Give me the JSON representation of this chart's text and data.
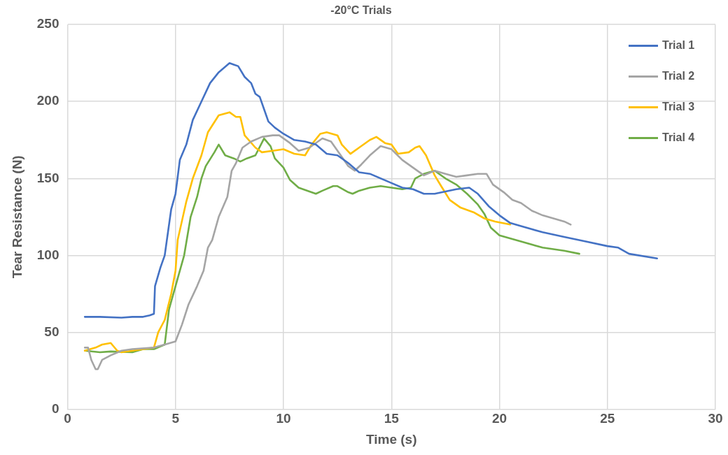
{
  "chart_data": {
    "type": "line",
    "title": "-20°C Trials",
    "xlabel": "Time (s)",
    "ylabel": "Tear Resistance (N)",
    "xlim": [
      0,
      30
    ],
    "xticks": [
      0,
      5,
      10,
      15,
      20,
      25,
      30
    ],
    "ylim": [
      0,
      250
    ],
    "yticks": [
      0,
      50,
      100,
      150,
      200,
      250
    ],
    "grid": true,
    "legend": "top right",
    "marker": "none",
    "line_style": "solid",
    "series": [
      {
        "name": "Trial 1",
        "color": "#4472c4",
        "x": [
          0.8,
          1.5,
          2.5,
          3.0,
          3.5,
          3.8,
          4.0,
          4.05,
          4.3,
          4.5,
          4.8,
          5.0,
          5.2,
          5.5,
          5.8,
          6.2,
          6.6,
          7.0,
          7.5,
          7.7,
          7.9,
          8.2,
          8.5,
          8.7,
          8.9,
          9.1,
          9.3,
          9.6,
          10.0,
          10.5,
          11.0,
          11.5,
          12.0,
          12.5,
          13.0,
          13.5,
          14.0,
          15.0,
          15.5,
          16.0,
          16.5,
          17.0,
          18.0,
          18.6,
          19.0,
          19.5,
          20.0,
          20.5,
          21.0,
          22.0,
          23.0,
          24.0,
          25.0,
          25.5,
          26.0,
          27.3
        ],
        "values": [
          60,
          60,
          59.5,
          60,
          60,
          61,
          62,
          80,
          92,
          100,
          130,
          140,
          162,
          172,
          188,
          200,
          212,
          219,
          225,
          224,
          223,
          216,
          212,
          205,
          203,
          195,
          187,
          183,
          179,
          175,
          174,
          172,
          166,
          165,
          160,
          154,
          153,
          147,
          144,
          143,
          140,
          140,
          143,
          144,
          140,
          132,
          126,
          121,
          119,
          115,
          112,
          109,
          106,
          105,
          101,
          98
        ]
      },
      {
        "name": "Trial 2",
        "color": "#a5a5a5",
        "x": [
          0.8,
          0.95,
          1.1,
          1.3,
          1.4,
          1.6,
          2.0,
          2.5,
          3.0,
          4.0,
          4.5,
          5.0,
          5.3,
          5.6,
          6.0,
          6.3,
          6.5,
          6.7,
          7.0,
          7.4,
          7.6,
          7.8,
          8.1,
          8.5,
          9.0,
          9.5,
          9.8,
          10.3,
          10.7,
          11.2,
          11.8,
          12.2,
          12.6,
          13.0,
          13.3,
          13.6,
          14.0,
          14.5,
          15.0,
          15.5,
          16.0,
          16.5,
          17.0,
          17.5,
          18.0,
          18.5,
          19.0,
          19.4,
          19.7,
          20.2,
          20.6,
          21.0,
          21.5,
          22.0,
          22.5,
          23.0,
          23.3
        ],
        "values": [
          40,
          40,
          32,
          26,
          26,
          32,
          35,
          38,
          39,
          40,
          42,
          44,
          55,
          68,
          80,
          90,
          105,
          110,
          125,
          138,
          155,
          160,
          170,
          174,
          177,
          178,
          178,
          173,
          168,
          170,
          176,
          174,
          166,
          158,
          155,
          159,
          165,
          171,
          169,
          162,
          157,
          152,
          155,
          153,
          151,
          152,
          153,
          153,
          146,
          141,
          136,
          134,
          129,
          126,
          124,
          122,
          120
        ]
      },
      {
        "name": "Trial 3",
        "color": "#ffc000",
        "x": [
          0.8,
          1.3,
          1.6,
          2.0,
          2.3,
          2.5,
          3.0,
          3.5,
          4.0,
          4.2,
          4.5,
          4.8,
          5.0,
          5.1,
          5.5,
          5.8,
          6.2,
          6.5,
          7.0,
          7.5,
          7.8,
          8.0,
          8.2,
          8.7,
          9.0,
          9.5,
          10.0,
          10.5,
          11.0,
          11.3,
          11.7,
          12.0,
          12.5,
          12.7,
          13.1,
          13.5,
          14.0,
          14.3,
          14.7,
          15.0,
          15.3,
          15.8,
          16.1,
          16.3,
          16.6,
          17.0,
          17.3,
          17.7,
          18.2,
          18.8,
          19.3,
          19.8,
          20.5
        ],
        "values": [
          38,
          40,
          42,
          43,
          38,
          37,
          38,
          39,
          40,
          50,
          58,
          75,
          90,
          110,
          135,
          150,
          165,
          180,
          191,
          193,
          190,
          190,
          178,
          170,
          167,
          168,
          169,
          166,
          165,
          172,
          179,
          180,
          178,
          172,
          166,
          170,
          175,
          177,
          173,
          172,
          166,
          167,
          170,
          171,
          165,
          152,
          145,
          136,
          131,
          128,
          124,
          122,
          120
        ]
      },
      {
        "name": "Trial 4",
        "color": "#70ad47",
        "x": [
          0.8,
          1.5,
          2.0,
          3.0,
          3.5,
          4.0,
          4.5,
          4.7,
          5.0,
          5.4,
          5.7,
          6.0,
          6.2,
          6.4,
          6.8,
          7.0,
          7.3,
          7.7,
          8.0,
          8.3,
          8.7,
          9.1,
          9.4,
          9.6,
          10.0,
          10.3,
          10.7,
          11.5,
          11.8,
          12.3,
          12.5,
          13.0,
          13.2,
          13.5,
          14.0,
          14.5,
          15.0,
          15.5,
          15.9,
          16.1,
          16.5,
          17.0,
          17.5,
          18.0,
          18.5,
          19.0,
          19.3,
          19.6,
          20.0,
          21.0,
          22.0,
          23.0,
          23.7
        ],
        "values": [
          38,
          37,
          37.5,
          37,
          39,
          39,
          42,
          65,
          80,
          100,
          125,
          138,
          150,
          158,
          167,
          172,
          165,
          163,
          161,
          163,
          165,
          176,
          171,
          163,
          157,
          149,
          144,
          140,
          142,
          145,
          145,
          141,
          140,
          142,
          144,
          145,
          144,
          143,
          144,
          150,
          153,
          155,
          150,
          146,
          140,
          133,
          127,
          118,
          113,
          109,
          105,
          103,
          101
        ]
      }
    ]
  }
}
